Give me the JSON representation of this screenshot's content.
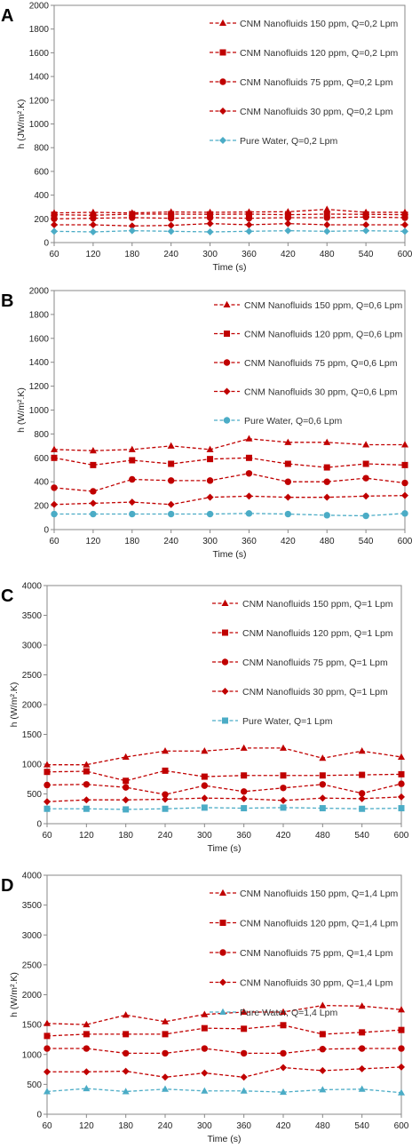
{
  "chart_data": [
    {
      "type": "line",
      "panel": "A",
      "ylabel": "h (JW/m².K)",
      "xlabel": "Time (s)",
      "ylim": [
        0,
        2000
      ],
      "yticks": [
        0,
        200,
        400,
        600,
        800,
        1000,
        1200,
        1400,
        1600,
        1800,
        2000
      ],
      "x": [
        60,
        120,
        180,
        240,
        300,
        360,
        420,
        480,
        540,
        600
      ],
      "series": [
        {
          "name": "CNM Nanofluids 150 ppm, Q=0,2 Lpm",
          "marker": "triangle",
          "color": "#c00000",
          "values": [
            250,
            255,
            250,
            258,
            255,
            258,
            260,
            280,
            255,
            255
          ]
        },
        {
          "name": "CNM Nanofluids 120 ppm, Q=0,2 Lpm",
          "marker": "square",
          "color": "#c00000",
          "values": [
            235,
            230,
            240,
            240,
            238,
            240,
            235,
            240,
            238,
            235
          ]
        },
        {
          "name": "CNM Nanofluids 75 ppm, Q=0,2 Lpm",
          "marker": "circle",
          "color": "#c00000",
          "values": [
            200,
            205,
            210,
            205,
            210,
            205,
            210,
            210,
            215,
            210
          ]
        },
        {
          "name": "CNM Nanofluids 30 ppm, Q=0,2 Lpm",
          "marker": "diamond",
          "color": "#c00000",
          "values": [
            150,
            150,
            140,
            145,
            160,
            150,
            160,
            150,
            150,
            150
          ]
        },
        {
          "name": "Pure Water, Q=0,2 Lpm",
          "marker": "diamond",
          "color": "#4bacc6",
          "values": [
            95,
            90,
            100,
            95,
            90,
            95,
            100,
            95,
            100,
            95
          ]
        }
      ]
    },
    {
      "type": "line",
      "panel": "B",
      "ylabel": "h (W/m².K)",
      "xlabel": "Time (s)",
      "ylim": [
        0,
        2000
      ],
      "yticks": [
        0,
        200,
        400,
        600,
        800,
        1000,
        1200,
        1400,
        1600,
        1800,
        2000
      ],
      "x": [
        60,
        120,
        180,
        240,
        300,
        360,
        420,
        480,
        540,
        600
      ],
      "series": [
        {
          "name": "CNM Nanofluids 150 ppm, Q=0,6 Lpm",
          "marker": "triangle",
          "color": "#c00000",
          "values": [
            670,
            660,
            670,
            700,
            670,
            760,
            730,
            730,
            710,
            710
          ]
        },
        {
          "name": "CNM Nanofluids 120 ppm, Q=0,6 Lpm",
          "marker": "square",
          "color": "#c00000",
          "values": [
            600,
            540,
            580,
            550,
            590,
            600,
            550,
            520,
            550,
            540
          ]
        },
        {
          "name": "CNM Nanofluids 75 ppm, Q=0,6 Lpm",
          "marker": "circle",
          "color": "#c00000",
          "values": [
            350,
            320,
            420,
            410,
            410,
            470,
            400,
            400,
            430,
            390
          ]
        },
        {
          "name": "CNM Nanofluids 30 ppm, Q=0,6 Lpm",
          "marker": "diamond",
          "color": "#c00000",
          "values": [
            210,
            220,
            230,
            210,
            270,
            280,
            270,
            270,
            280,
            285
          ]
        },
        {
          "name": "Pure Water, Q=0,6 Lpm",
          "marker": "circle",
          "color": "#4bacc6",
          "values": [
            130,
            130,
            130,
            130,
            130,
            135,
            130,
            120,
            115,
            135
          ]
        }
      ]
    },
    {
      "type": "line",
      "panel": "C",
      "ylabel": "h (W/m².K)",
      "xlabel": "Time (s)",
      "ylim": [
        0,
        4000
      ],
      "yticks": [
        0,
        500,
        1000,
        1500,
        2000,
        2500,
        3000,
        3500,
        4000
      ],
      "x": [
        60,
        120,
        180,
        240,
        300,
        360,
        420,
        480,
        540,
        600
      ],
      "series": [
        {
          "name": "CNM Nanofluids 150 ppm, Q=1 Lpm",
          "marker": "triangle",
          "color": "#c00000",
          "values": [
            990,
            990,
            1120,
            1220,
            1220,
            1270,
            1270,
            1100,
            1220,
            1120
          ]
        },
        {
          "name": "CNM Nanofluids 120 ppm, Q=1 Lpm",
          "marker": "square",
          "color": "#c00000",
          "values": [
            870,
            880,
            720,
            890,
            790,
            810,
            810,
            810,
            820,
            830
          ]
        },
        {
          "name": "CNM Nanofluids 75 ppm, Q=1 Lpm",
          "marker": "circle",
          "color": "#c00000",
          "values": [
            650,
            660,
            610,
            490,
            640,
            540,
            600,
            660,
            510,
            670
          ]
        },
        {
          "name": "CNM Nanofluids 30 ppm, Q=1 Lpm",
          "marker": "diamond",
          "color": "#c00000",
          "values": [
            370,
            400,
            400,
            410,
            430,
            420,
            390,
            430,
            420,
            450
          ]
        },
        {
          "name": "Pure Water, Q=1 Lpm",
          "marker": "square",
          "color": "#4bacc6",
          "values": [
            250,
            250,
            240,
            250,
            270,
            260,
            270,
            260,
            250,
            260
          ]
        }
      ]
    },
    {
      "type": "line",
      "panel": "D",
      "ylabel": "h (W/m².K)",
      "xlabel": "Time (s)",
      "ylim": [
        0,
        4000
      ],
      "yticks": [
        0,
        500,
        1000,
        1500,
        2000,
        2500,
        3000,
        3500,
        4000
      ],
      "x": [
        60,
        120,
        180,
        240,
        300,
        360,
        420,
        480,
        540,
        600
      ],
      "series": [
        {
          "name": "CNM Nanofluids 150 ppm, Q=1,4 Lpm",
          "marker": "triangle",
          "color": "#c00000",
          "values": [
            1520,
            1500,
            1660,
            1550,
            1670,
            1710,
            1710,
            1820,
            1810,
            1750
          ]
        },
        {
          "name": "CNM Nanofluids 120 ppm, Q=1,4 Lpm",
          "marker": "square",
          "color": "#c00000",
          "values": [
            1310,
            1340,
            1340,
            1340,
            1440,
            1430,
            1490,
            1340,
            1370,
            1410
          ]
        },
        {
          "name": "CNM Nanofluids 75 ppm, Q=1,4 Lpm",
          "marker": "circle",
          "color": "#c00000",
          "values": [
            1100,
            1100,
            1020,
            1020,
            1100,
            1020,
            1020,
            1090,
            1100,
            1100
          ]
        },
        {
          "name": "CNM Nanofluids 30 ppm, Q=1,4 Lpm",
          "marker": "diamond",
          "color": "#c00000",
          "values": [
            710,
            710,
            720,
            620,
            690,
            620,
            780,
            730,
            760,
            790
          ]
        },
        {
          "name": "Pure Water, Q=1,4 Lpm",
          "marker": "triangle",
          "color": "#4bacc6",
          "values": [
            380,
            430,
            380,
            420,
            390,
            390,
            370,
            410,
            420,
            360
          ]
        }
      ]
    }
  ]
}
